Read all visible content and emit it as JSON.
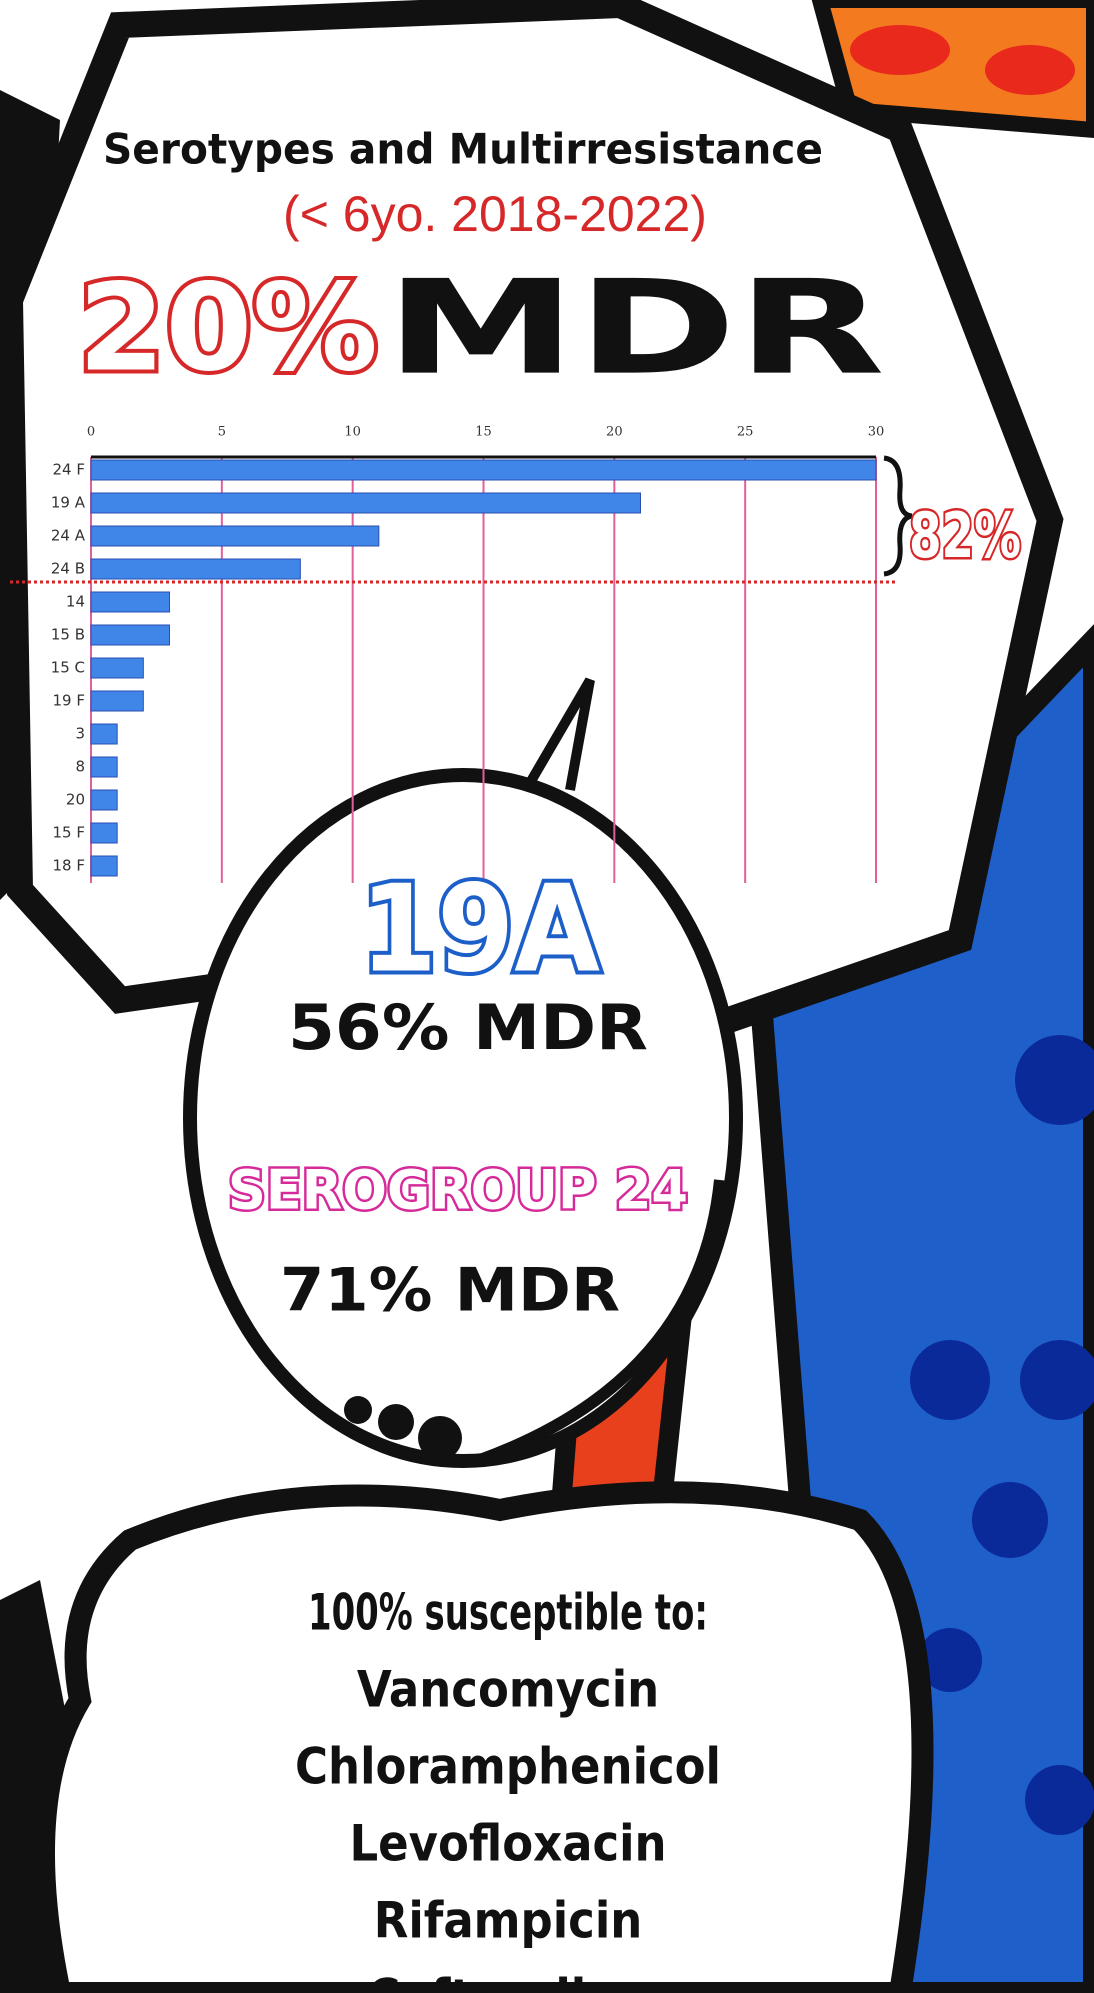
{
  "chart_data": {
    "type": "bar",
    "orientation": "horizontal",
    "title": "Serotypes and Multirresistance",
    "subtitle": "(< 6yo. 2018-2022)",
    "categories": [
      "24 F",
      "19 A",
      "24 A",
      "24 B",
      "14",
      "15 B",
      "15 C",
      "19 F",
      "3",
      "8",
      "20",
      "15 F",
      "18 F"
    ],
    "values": [
      30,
      21,
      11,
      8,
      3,
      3,
      2,
      2,
      1,
      1,
      1,
      1,
      1
    ],
    "color": "#3f86e8",
    "xlim": [
      0,
      30
    ],
    "xticks": [
      0,
      5,
      10,
      15,
      20,
      25,
      30
    ],
    "grid": true,
    "grid_color": "#e0609c"
  },
  "headline": {
    "value": "20%",
    "label": "MDR"
  },
  "bracket_label": "82%",
  "bubble": {
    "serotype": "19A",
    "serotype_mdr": "56% MDR",
    "serogroup": "SEROGROUP 24",
    "serogroup_mdr": "71% MDR"
  },
  "susceptibility": {
    "heading": "100% susceptible to:",
    "drugs": [
      "Vancomycin",
      "Chloramphenicol",
      "Levofloxacin",
      "Rifampicin",
      "Ceftaroline"
    ]
  }
}
